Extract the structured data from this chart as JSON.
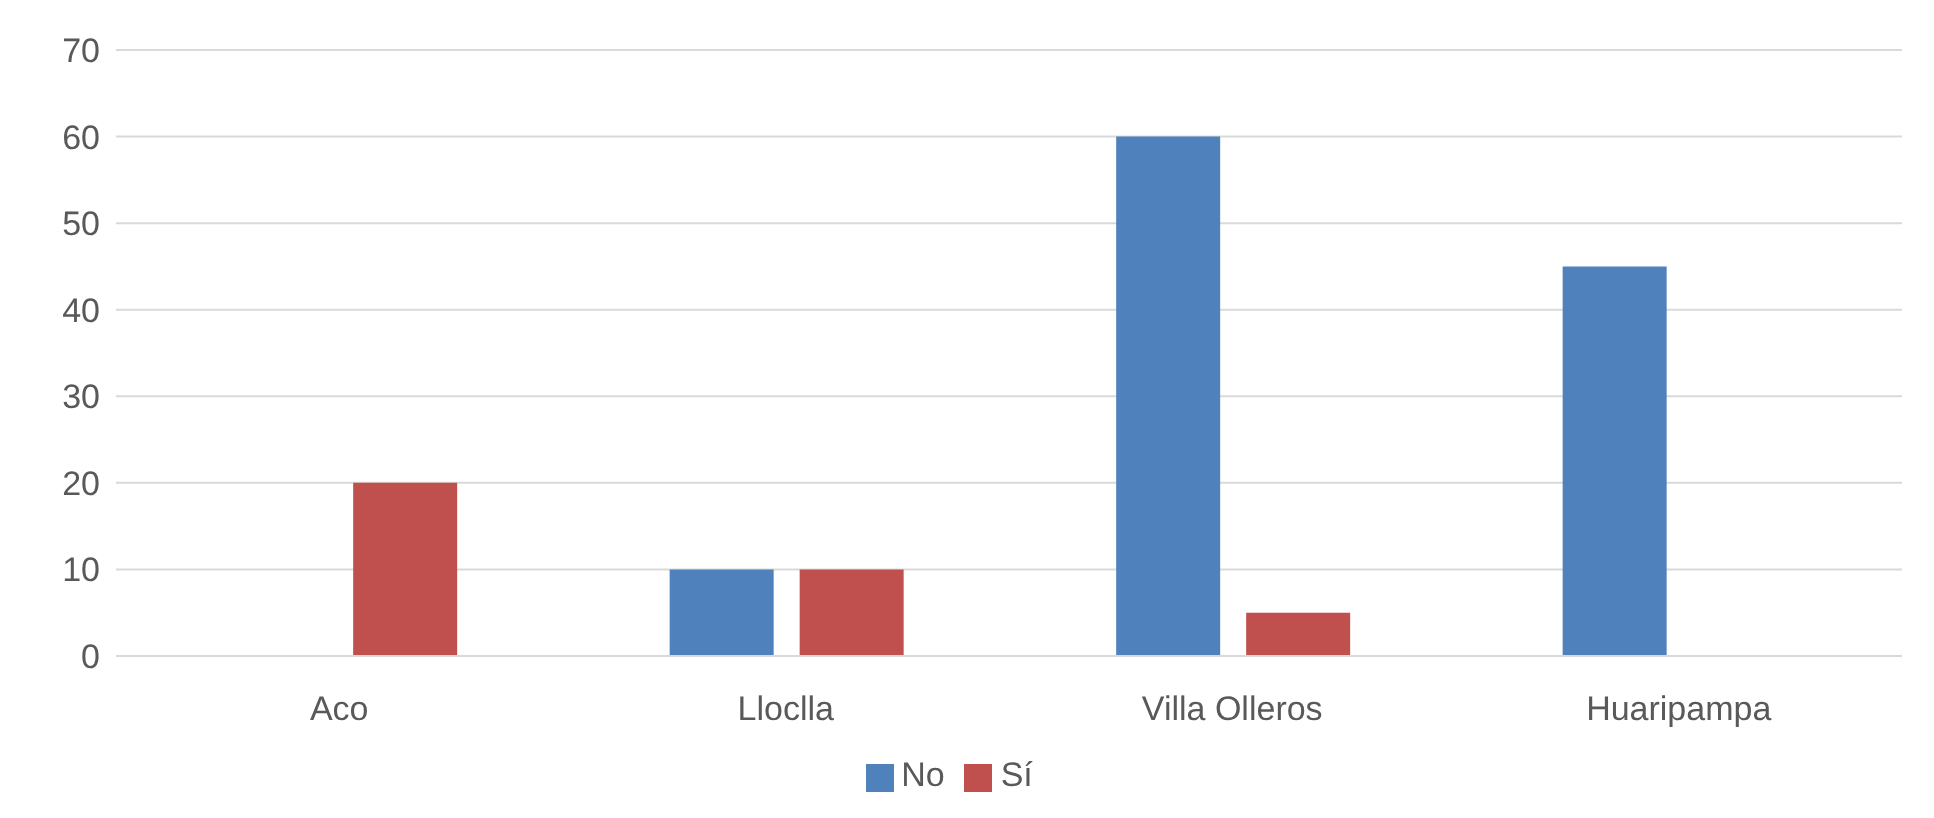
{
  "chart_data": {
    "type": "bar",
    "categories": [
      "Aco",
      "Lloclla",
      "Villa Olleros",
      "Huaripampa"
    ],
    "series": [
      {
        "name": "No",
        "color": "#4f81bd",
        "values": [
          0,
          10,
          60,
          45
        ]
      },
      {
        "name": "Sí",
        "color": "#c0504d",
        "values": [
          20,
          10,
          5,
          0
        ]
      }
    ],
    "ylim": [
      0,
      70
    ],
    "yticks": [
      0,
      10,
      20,
      30,
      40,
      50,
      60,
      70
    ],
    "grid": "y",
    "legend": "bottom"
  }
}
